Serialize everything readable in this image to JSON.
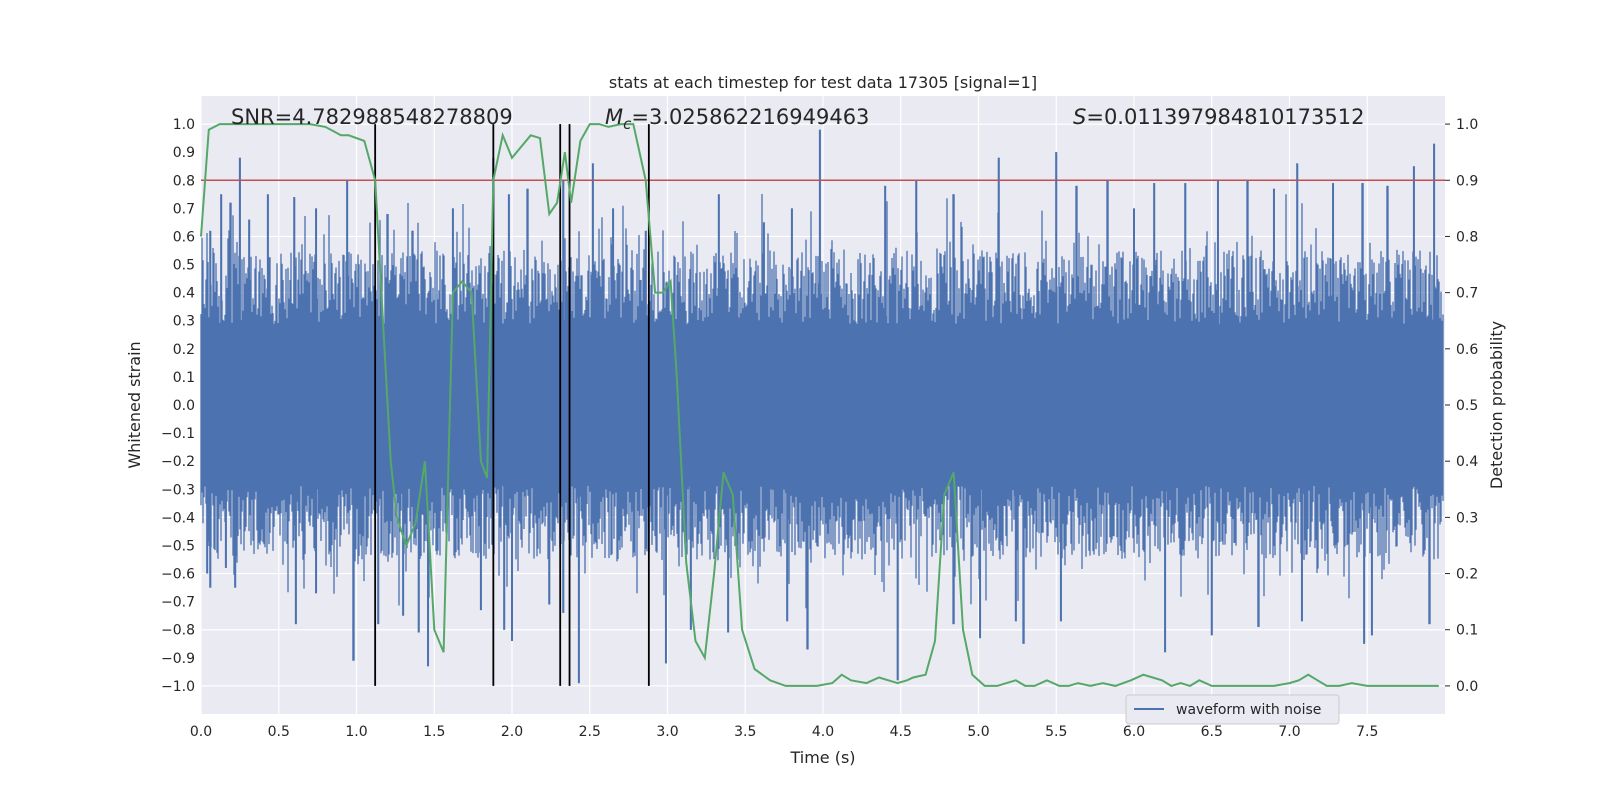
{
  "chart_data": {
    "type": "line",
    "title": "stats at each timestep for test data 17305 [signal=1]",
    "xlabel": "Time (s)",
    "ylabel": "Whitened strain",
    "ylabel_right": "Detection probability",
    "xlim": [
      0.0,
      8.0
    ],
    "ylim": [
      -1.1,
      1.1
    ],
    "ylim_right": [
      -0.05,
      1.05
    ],
    "x_ticks": [
      0.0,
      0.5,
      1.0,
      1.5,
      2.0,
      2.5,
      3.0,
      3.5,
      4.0,
      4.5,
      5.0,
      5.5,
      6.0,
      6.5,
      7.0,
      7.5
    ],
    "x_tick_labels": [
      "0.0",
      "0.5",
      "1.0",
      "1.5",
      "2.0",
      "2.5",
      "3.0",
      "3.5",
      "4.0",
      "4.5",
      "5.0",
      "5.5",
      "6.0",
      "6.5",
      "7.0",
      "7.5"
    ],
    "y_ticks": [
      1.0,
      0.9,
      0.8,
      0.7,
      0.6,
      0.5,
      0.4,
      0.3,
      0.2,
      0.1,
      0.0,
      -0.1,
      -0.2,
      -0.3,
      -0.4,
      -0.5,
      -0.6,
      -0.7,
      -0.8,
      -0.9,
      -1.0
    ],
    "y_tick_labels": [
      "1.0",
      "0.9",
      "0.8",
      "0.7",
      "0.6",
      "0.5",
      "0.4",
      "0.3",
      "0.2",
      "0.1",
      "0.0",
      "−0.1",
      "−0.2",
      "−0.3",
      "−0.4",
      "−0.5",
      "−0.6",
      "−0.7",
      "−0.8",
      "−0.9",
      "−1.0"
    ],
    "y_right_ticks": [
      1.0,
      0.9,
      0.8,
      0.7,
      0.6,
      0.5,
      0.4,
      0.3,
      0.2,
      0.1,
      0.0
    ],
    "y_right_tick_labels": [
      "1.0",
      "0.9",
      "0.8",
      "0.7",
      "0.6",
      "0.5",
      "0.4",
      "0.3",
      "0.2",
      "0.1",
      "0.0"
    ],
    "annotations": {
      "snr": "SNR=4.782988548278809",
      "mc_symbol": "M",
      "mc_sub": "c",
      "mc_value": "=3.025862216949463",
      "s_symbol": "S",
      "s_value": "=0.011397984810173512"
    },
    "legend": {
      "label": "waveform with noise",
      "placement": "lower-right"
    },
    "threshold_line": {
      "value_right": 0.9,
      "color": "#c44e52"
    },
    "event_lines_x": [
      1.12,
      1.88,
      2.31,
      2.37,
      2.88
    ],
    "waveform": {
      "name": "waveform with noise",
      "color": "#4c72b0",
      "x_start": 0.0,
      "x_end": 7.99,
      "typical_envelope": 0.48,
      "peaks_positive": [
        [
          0.06,
          0.62
        ],
        [
          0.13,
          0.75
        ],
        [
          0.19,
          0.72
        ],
        [
          0.25,
          0.88
        ],
        [
          0.31,
          0.66
        ],
        [
          0.43,
          0.75
        ],
        [
          0.6,
          0.74
        ],
        [
          0.74,
          0.7
        ],
        [
          0.94,
          0.8
        ],
        [
          1.2,
          0.68
        ],
        [
          1.36,
          0.62
        ],
        [
          1.62,
          0.7
        ],
        [
          1.88,
          0.88
        ],
        [
          1.98,
          0.75
        ],
        [
          2.1,
          0.77
        ],
        [
          2.33,
          0.8
        ],
        [
          2.52,
          0.86
        ],
        [
          2.65,
          0.7
        ],
        [
          2.86,
          0.62
        ],
        [
          3.33,
          0.75
        ],
        [
          3.62,
          0.65
        ],
        [
          3.8,
          0.7
        ],
        [
          3.98,
          0.98
        ],
        [
          4.4,
          0.78
        ],
        [
          4.6,
          0.8
        ],
        [
          4.84,
          0.75
        ],
        [
          5.13,
          0.88
        ],
        [
          5.5,
          0.9
        ],
        [
          5.63,
          0.78
        ],
        [
          5.83,
          0.8
        ],
        [
          6.0,
          0.7
        ],
        [
          6.13,
          0.79
        ],
        [
          6.33,
          0.79
        ],
        [
          6.54,
          0.8
        ],
        [
          6.73,
          0.8
        ],
        [
          6.9,
          0.77
        ],
        [
          7.05,
          0.86
        ],
        [
          7.28,
          0.79
        ],
        [
          7.47,
          0.79
        ],
        [
          7.63,
          0.78
        ],
        [
          7.8,
          0.85
        ],
        [
          7.93,
          0.93
        ]
      ],
      "peaks_negative": [
        [
          0.04,
          -0.6
        ],
        [
          0.06,
          -0.65
        ],
        [
          0.16,
          -0.58
        ],
        [
          0.22,
          -0.65
        ],
        [
          0.61,
          -0.78
        ],
        [
          0.74,
          -0.67
        ],
        [
          0.98,
          -0.91
        ],
        [
          1.14,
          -0.78
        ],
        [
          1.3,
          -0.75
        ],
        [
          1.4,
          -0.81
        ],
        [
          1.46,
          -0.93
        ],
        [
          1.8,
          -0.73
        ],
        [
          1.95,
          -0.8
        ],
        [
          2.0,
          -0.84
        ],
        [
          2.24,
          -0.71
        ],
        [
          2.33,
          -0.74
        ],
        [
          2.43,
          -0.99
        ],
        [
          2.99,
          -0.92
        ],
        [
          3.15,
          -0.8
        ],
        [
          3.39,
          -0.81
        ],
        [
          3.77,
          -0.77
        ],
        [
          3.9,
          -0.87
        ],
        [
          4.48,
          -0.98
        ],
        [
          4.84,
          -0.78
        ],
        [
          5.01,
          -0.83
        ],
        [
          5.24,
          -0.77
        ],
        [
          5.29,
          -0.85
        ],
        [
          5.53,
          -0.77
        ],
        [
          6.2,
          -0.88
        ],
        [
          6.5,
          -0.82
        ],
        [
          6.8,
          -0.79
        ],
        [
          7.08,
          -0.77
        ],
        [
          7.48,
          -0.85
        ],
        [
          7.53,
          -0.82
        ],
        [
          7.9,
          -0.78
        ]
      ]
    },
    "detection_probability": {
      "name": "Detection probability",
      "color": "#55a868",
      "x": [
        0.0,
        0.05,
        0.12,
        0.2,
        0.3,
        0.4,
        0.5,
        0.6,
        0.7,
        0.8,
        0.9,
        0.95,
        1.05,
        1.12,
        1.22,
        1.26,
        1.32,
        1.38,
        1.44,
        1.5,
        1.56,
        1.62,
        1.68,
        1.74,
        1.8,
        1.84,
        1.88,
        1.94,
        2.0,
        2.06,
        2.12,
        2.18,
        2.24,
        2.29,
        2.34,
        2.38,
        2.44,
        2.5,
        2.56,
        2.62,
        2.7,
        2.78,
        2.86,
        2.92,
        2.97,
        3.02,
        3.06,
        3.12,
        3.18,
        3.24,
        3.3,
        3.36,
        3.42,
        3.48,
        3.56,
        3.66,
        3.76,
        3.86,
        3.96,
        4.06,
        4.12,
        4.18,
        4.28,
        4.36,
        4.42,
        4.48,
        4.54,
        4.58,
        4.66,
        4.72,
        4.78,
        4.84,
        4.9,
        4.96,
        5.04,
        5.12,
        5.18,
        5.24,
        5.3,
        5.36,
        5.44,
        5.52,
        5.58,
        5.64,
        5.72,
        5.8,
        5.88,
        5.98,
        6.06,
        6.12,
        6.18,
        6.24,
        6.3,
        6.36,
        6.42,
        6.5,
        6.56,
        6.66,
        6.78,
        6.9,
        7.0,
        7.06,
        7.12,
        7.18,
        7.24,
        7.32,
        7.4,
        7.5,
        7.6,
        7.7,
        7.8,
        7.9,
        7.96
      ],
      "y": [
        0.8,
        0.99,
        1.0,
        1.0,
        1.0,
        1.0,
        1.0,
        1.0,
        1.0,
        0.995,
        0.98,
        0.98,
        0.97,
        0.9,
        0.4,
        0.3,
        0.25,
        0.29,
        0.4,
        0.1,
        0.06,
        0.7,
        0.72,
        0.7,
        0.4,
        0.37,
        0.9,
        0.98,
        0.94,
        0.96,
        0.98,
        0.975,
        0.84,
        0.86,
        0.95,
        0.86,
        0.97,
        1.0,
        1.0,
        0.995,
        1.0,
        1.0,
        0.9,
        0.7,
        0.7,
        0.72,
        0.55,
        0.22,
        0.08,
        0.05,
        0.2,
        0.38,
        0.34,
        0.1,
        0.03,
        0.01,
        0.0,
        0.0,
        0.0,
        0.005,
        0.02,
        0.01,
        0.005,
        0.015,
        0.01,
        0.005,
        0.01,
        0.015,
        0.02,
        0.08,
        0.34,
        0.38,
        0.1,
        0.02,
        0.0,
        0.0,
        0.005,
        0.01,
        0.0,
        0.0,
        0.01,
        0.0,
        0.0,
        0.005,
        0.0,
        0.005,
        0.0,
        0.01,
        0.02,
        0.015,
        0.01,
        0.0,
        0.005,
        0.0,
        0.01,
        0.0,
        0.0,
        0.0,
        0.0,
        0.0,
        0.005,
        0.01,
        0.02,
        0.01,
        0.0,
        0.0,
        0.005,
        0.0,
        0.0,
        0.0,
        0.0,
        0.0,
        0.0
      ]
    }
  }
}
